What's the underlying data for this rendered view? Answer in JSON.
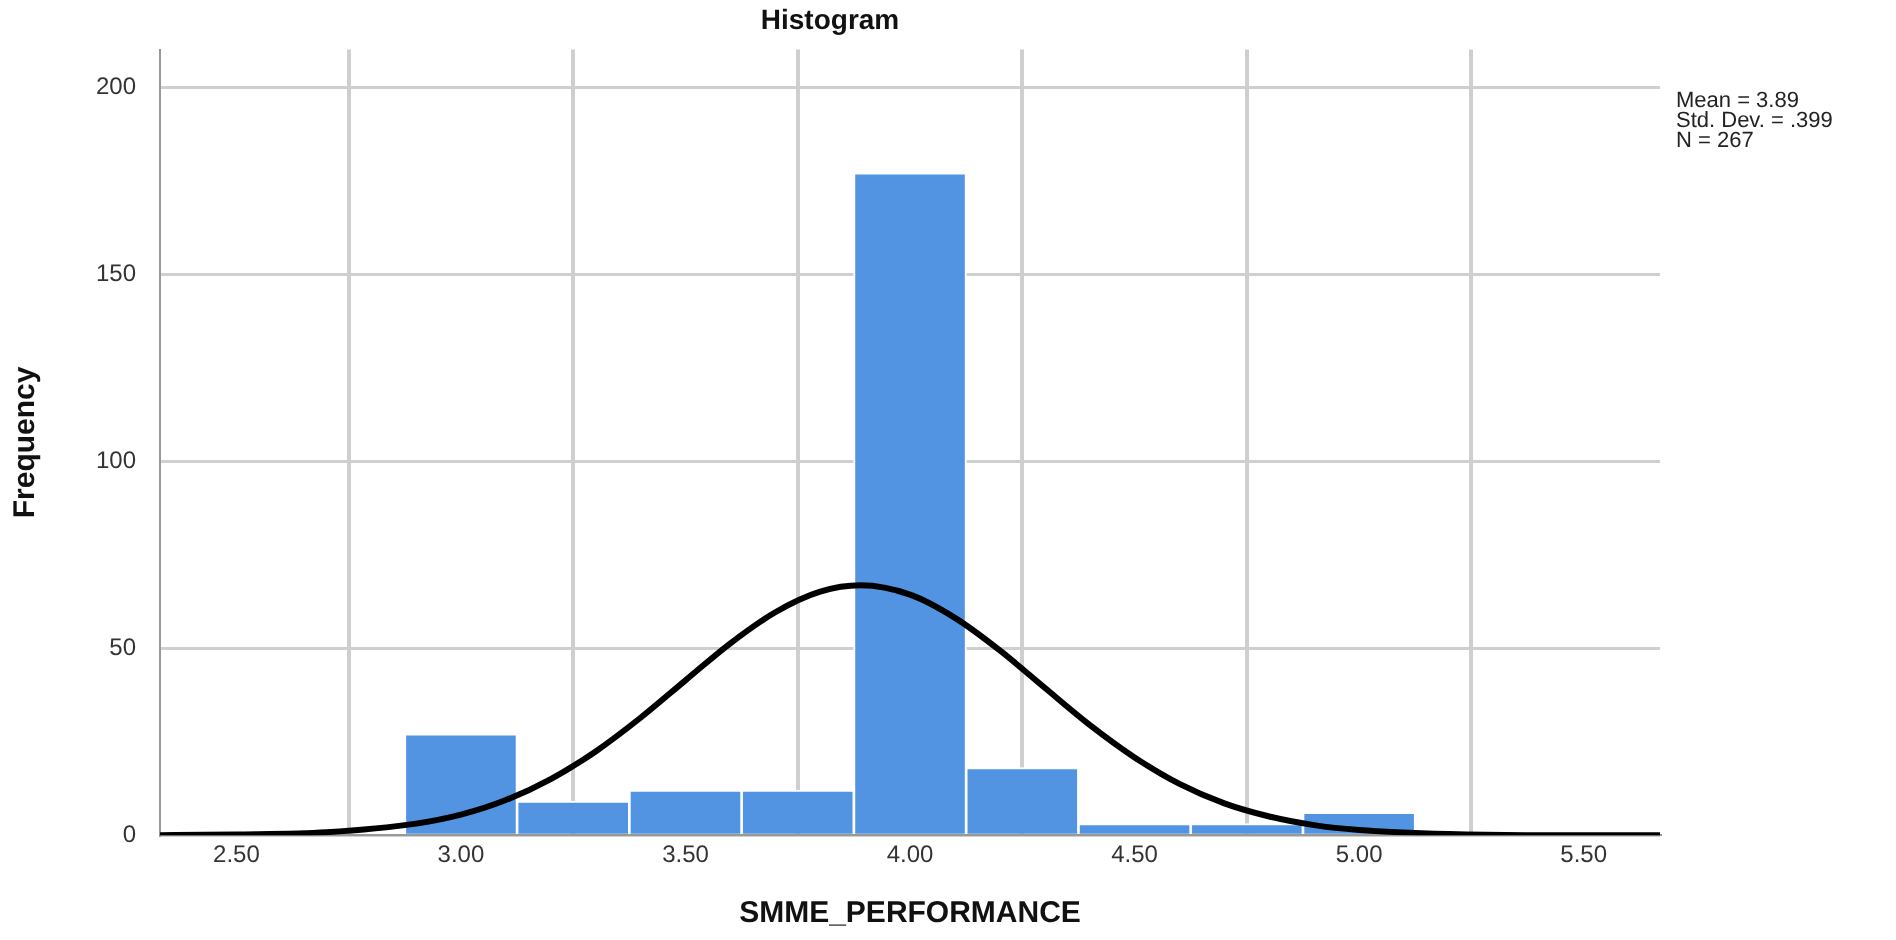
{
  "chart_data": {
    "type": "histogram",
    "title": "Histogram",
    "xlabel": "SMME_PERFORMANCE",
    "ylabel": "Frequency",
    "xlim": [
      2.33,
      5.67
    ],
    "xticks": [
      {
        "value": 2.5,
        "label": "2.50"
      },
      {
        "value": 3,
        "label": "3.00"
      },
      {
        "value": 3.5,
        "label": "3.50"
      },
      {
        "value": 4,
        "label": "4.00"
      },
      {
        "value": 4.5,
        "label": "4.50"
      },
      {
        "value": 5,
        "label": "5.00"
      },
      {
        "value": 5.5,
        "label": "5.50"
      }
    ],
    "ylim": [
      0,
      210
    ],
    "yticks": [
      0,
      50,
      100,
      150,
      200
    ],
    "grid": true,
    "series": [
      {
        "color": "#5294e2",
        "bins": [
          2.875,
          3.125,
          3.375,
          3.625,
          3.875,
          4.125,
          4.375,
          4.625,
          4.875,
          5.125
        ],
        "values": [
          27,
          9,
          12,
          12,
          177,
          18,
          3,
          3,
          6
        ]
      },
      {
        "type": "line",
        "color": "#000000",
        "x": [
          2.33,
          2.5,
          2.7,
          2.9,
          3.0,
          3.1,
          3.2,
          3.3,
          3.4,
          3.5,
          3.6,
          3.7,
          3.8,
          3.89,
          4.0,
          4.1,
          4.2,
          4.3,
          4.4,
          4.5,
          4.6,
          4.7,
          4.8,
          4.9,
          5.0,
          5.2,
          5.4,
          5.67
        ],
        "values": [
          0,
          0.2,
          0.8,
          3.1,
          5.5,
          9.4,
          15,
          22.4,
          31.4,
          41.4,
          51.3,
          59.6,
          65.1,
          66.8,
          64.3,
          58.1,
          49.4,
          39.4,
          29.5,
          20.8,
          13.7,
          8.5,
          5,
          2.7,
          1.4,
          0.3,
          0,
          0
        ]
      }
    ],
    "annotations": [
      "Mean = 3.89",
      "Std. Dev. = .399",
      "N = 267"
    ]
  }
}
